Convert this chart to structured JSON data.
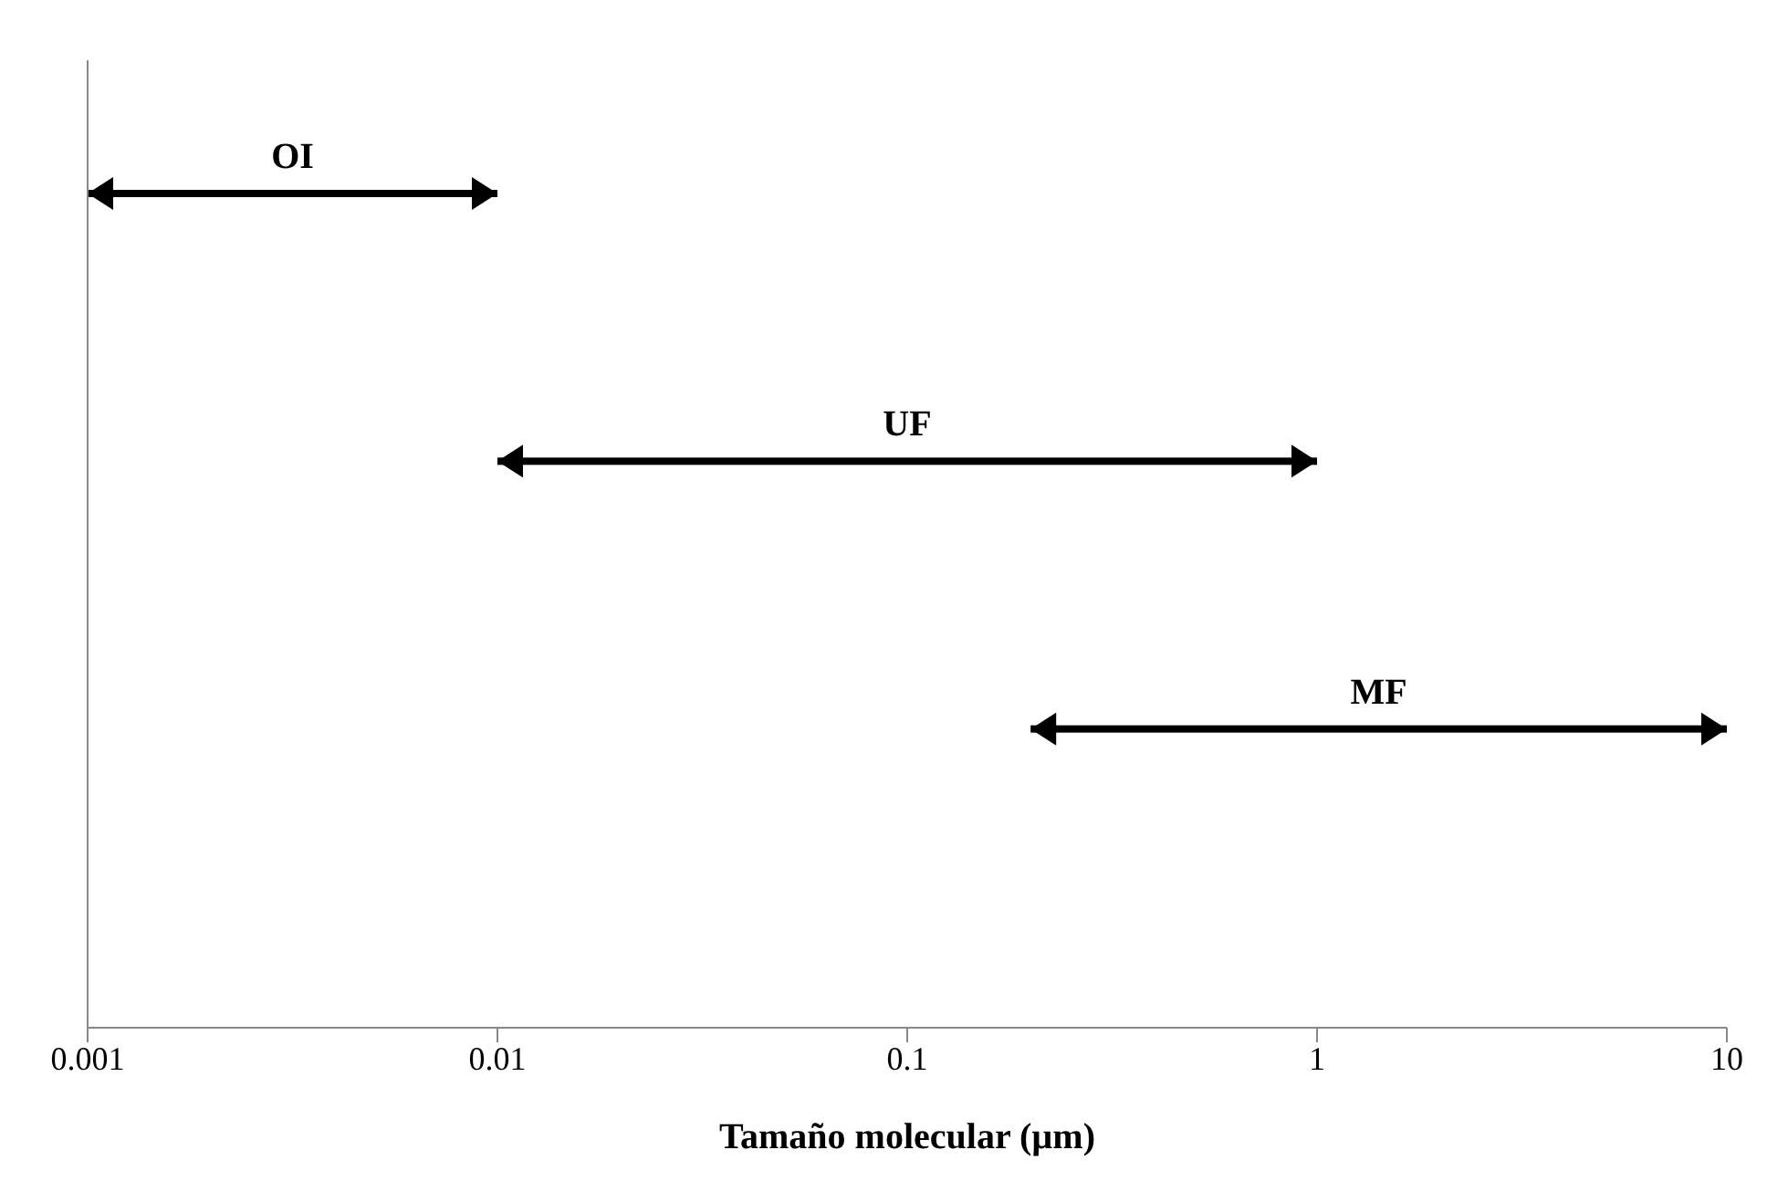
{
  "chart_data": {
    "type": "bar",
    "orientation": "horizontal",
    "xlabel": "Tamaño molecular (µm)",
    "categories": [
      "OI",
      "UF",
      "MF"
    ],
    "base": [
      0.001,
      0.01,
      0.2
    ],
    "values": [
      0.009,
      0.99,
      9.8
    ],
    "color": "#000000",
    "log": "x",
    "xlim": [
      0.001,
      10
    ],
    "xticks": [
      0.001,
      0.01,
      0.1,
      1,
      10
    ],
    "tick_labels": "x"
  }
}
